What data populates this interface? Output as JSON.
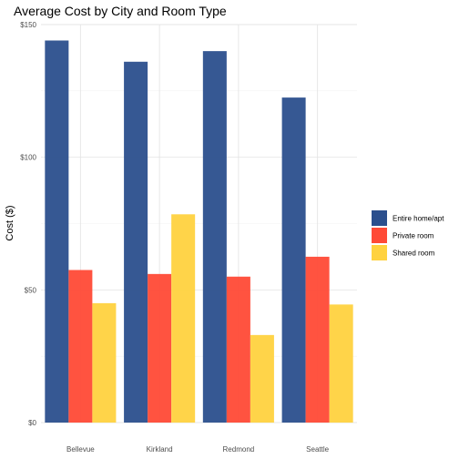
{
  "chart_data": {
    "type": "bar",
    "title": "Average Cost by City and Room Type",
    "xlabel": "",
    "ylabel": "Cost ($)",
    "categories": [
      "Bellevue",
      "Kirkland",
      "Redmond",
      "Seattle"
    ],
    "series": [
      {
        "name": "Entire home/apt",
        "color": "#2b4f8d",
        "values": [
          144,
          136,
          140,
          122.5
        ]
      },
      {
        "name": "Private room",
        "color": "#ff4a36",
        "values": [
          57.5,
          56,
          55,
          62.5
        ]
      },
      {
        "name": "Shared room",
        "color": "#ffd23f",
        "values": [
          45,
          78.5,
          33,
          44.5
        ]
      }
    ],
    "ylim": [
      0,
      150
    ],
    "yticks": [
      0,
      50,
      100,
      150
    ],
    "ytick_labels": [
      "$0",
      "$50",
      "$100",
      "$150"
    ],
    "grid": true,
    "legend": "right"
  }
}
